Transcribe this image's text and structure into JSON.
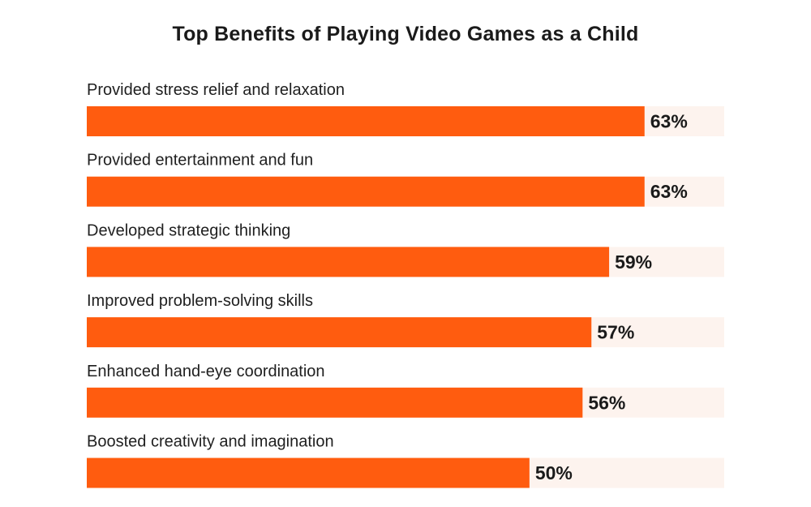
{
  "chart_data": {
    "type": "bar",
    "orientation": "horizontal",
    "title": "Top Benefits of Playing Video Games as a Child",
    "categories": [
      "Provided stress relief and relaxation",
      "Provided entertainment and fun",
      "Developed strategic thinking",
      "Improved problem-solving skills",
      "Enhanced hand-eye coordination",
      "Boosted creativity and imagination"
    ],
    "values": [
      63,
      63,
      59,
      57,
      56,
      50
    ],
    "value_labels": [
      "63%",
      "63%",
      "59%",
      "57%",
      "56%",
      "50%"
    ],
    "xlim": [
      0,
      72
    ],
    "grid": false,
    "legend": "none",
    "colors": {
      "bar": "#ff5c0f",
      "track": "#fdf3ee",
      "label": "#1f1f1f",
      "value": "#1a1a1a"
    }
  }
}
